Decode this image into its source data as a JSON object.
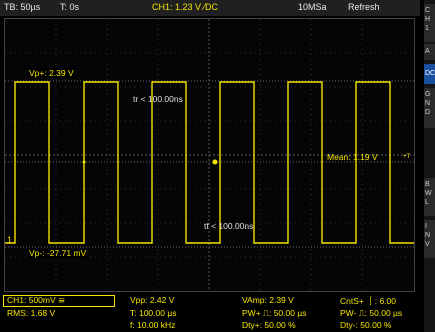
{
  "top": {
    "timebase": "TB: 50µs",
    "time": "T: 0s",
    "ch1_setting": "CH1: 1.23 V ⁄DC",
    "sample_rate": "10MSa",
    "mode": "Refresh"
  },
  "side_menu": {
    "items": [
      {
        "label": "C\nH\n1"
      },
      {
        "label": "A"
      },
      {
        "label": "DC"
      },
      {
        "label": "G\nN\nD"
      },
      {
        "label": "B\nW\nL"
      },
      {
        "label": "I\nN\nV"
      }
    ],
    "selected_index": 2
  },
  "markers": {
    "vp_plus": "Vp+: 2.39 V",
    "vp_minus": "Vp-: -27.71 mV",
    "tr": "tr < 100.00ns",
    "tf": "tf < 100.00ns",
    "mean": "Mean: 1.19 V",
    "trigger": "+T",
    "ground": "1"
  },
  "readouts": {
    "ch1_scale": "CH1: 500mV ≅",
    "rms": "RMS: 1.68 V",
    "vpp": "Vpp: 2.42 V",
    "period": "T: 100.00 µs",
    "freq": "f: 10.00 kHz",
    "vamp": "VAmp: 2.39 V",
    "pw_plus": "PW+ ⎍: 50.00 µs",
    "dty_plus": "Dty+: 50.00 %",
    "cnt_plus": "CntS+ ⎰: 6.00",
    "pw_minus": "PW- ⎍: 50.00 µs",
    "dty_minus": "Dty-: 50.00 %"
  },
  "colors": {
    "trace": "#f5e400",
    "selected": "#1b4fa0"
  },
  "waveform": {
    "type": "square",
    "high_v": 2.39,
    "low_v": -0.02771,
    "period_us": 100,
    "duty_percent": 50
  }
}
